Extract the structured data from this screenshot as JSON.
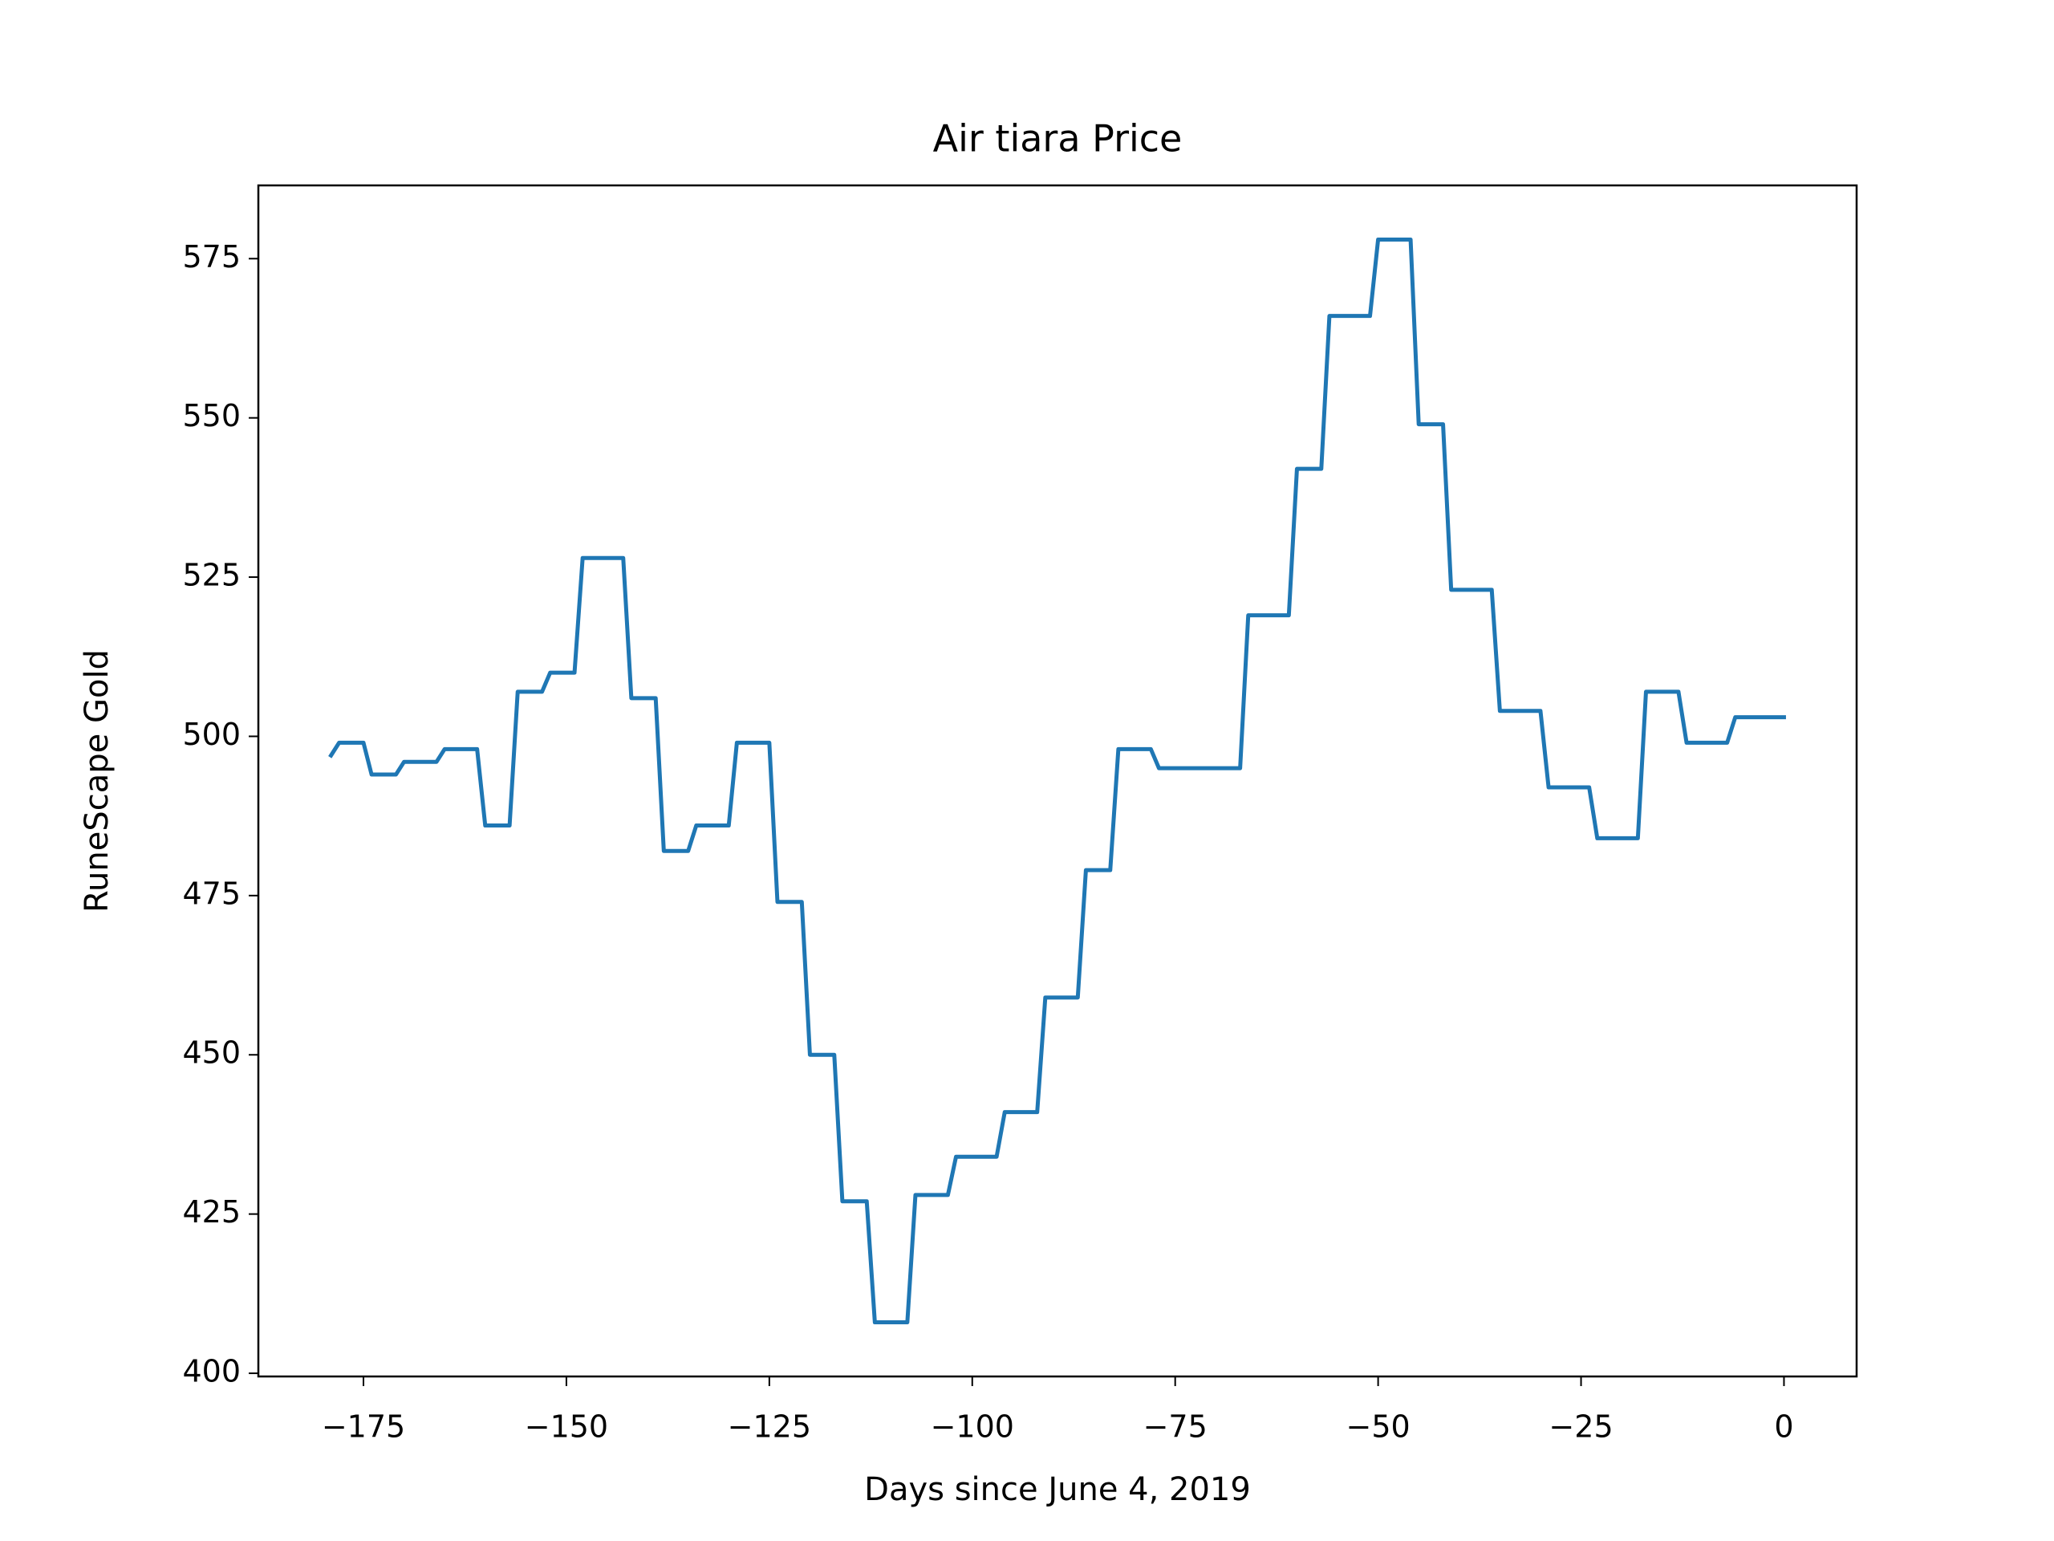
{
  "chart_data": {
    "type": "line",
    "title": "Air tiara Price",
    "xlabel": "Days since June 4, 2019",
    "ylabel": "RuneScape Gold",
    "color": "#1f77b4",
    "x": [
      -179,
      -178,
      -177,
      -176,
      -175,
      -174,
      -173,
      -172,
      -171,
      -170,
      -169,
      -168,
      -167,
      -166,
      -165,
      -164,
      -163,
      -162,
      -161,
      -160,
      -159,
      -158,
      -157,
      -156,
      -155,
      -154,
      -153,
      -152,
      -151,
      -150,
      -149,
      -148,
      -147,
      -146,
      -145,
      -144,
      -143,
      -142,
      -141,
      -140,
      -139,
      -138,
      -137,
      -136,
      -135,
      -134,
      -133,
      -132,
      -131,
      -130,
      -129,
      -128,
      -127,
      -126,
      -125,
      -124,
      -123,
      -122,
      -121,
      -120,
      -119,
      -118,
      -117,
      -116,
      -115,
      -114,
      -113,
      -112,
      -111,
      -110,
      -109,
      -108,
      -107,
      -106,
      -105,
      -104,
      -103,
      -102,
      -101,
      -100,
      -99,
      -98,
      -97,
      -96,
      -95,
      -94,
      -93,
      -92,
      -91,
      -90,
      -89,
      -88,
      -87,
      -86,
      -85,
      -84,
      -83,
      -82,
      -81,
      -80,
      -79,
      -78,
      -77,
      -76,
      -75,
      -74,
      -73,
      -72,
      -71,
      -70,
      -69,
      -68,
      -67,
      -66,
      -65,
      -64,
      -63,
      -62,
      -61,
      -60,
      -59,
      -58,
      -57,
      -56,
      -55,
      -54,
      -53,
      -52,
      -51,
      -50,
      -49,
      -48,
      -47,
      -46,
      -45,
      -44,
      -43,
      -42,
      -41,
      -40,
      -39,
      -38,
      -37,
      -36,
      -35,
      -34,
      -33,
      -32,
      -31,
      -30,
      -29,
      -28,
      -27,
      -26,
      -25,
      -24,
      -23,
      -22,
      -21,
      -20,
      -19,
      -18,
      -17,
      -16,
      -15,
      -14,
      -13,
      -12,
      -11,
      -10,
      -9,
      -8,
      -7,
      -6,
      -5,
      -4,
      -3,
      -2,
      -1,
      0
    ],
    "values": [
      497,
      499,
      499,
      499,
      499,
      494,
      494,
      494,
      494,
      496,
      496,
      496,
      496,
      496,
      498,
      498,
      498,
      498,
      498,
      486,
      486,
      486,
      486,
      507,
      507,
      507,
      507,
      510,
      510,
      510,
      510,
      528,
      528,
      528,
      528,
      528,
      528,
      506,
      506,
      506,
      506,
      482,
      482,
      482,
      482,
      486,
      486,
      486,
      486,
      486,
      499,
      499,
      499,
      499,
      499,
      474,
      474,
      474,
      474,
      450,
      450,
      450,
      450,
      427,
      427,
      427,
      427,
      408,
      408,
      408,
      408,
      408,
      428,
      428,
      428,
      428,
      428,
      434,
      434,
      434,
      434,
      434,
      434,
      441,
      441,
      441,
      441,
      441,
      459,
      459,
      459,
      459,
      459,
      479,
      479,
      479,
      479,
      498,
      498,
      498,
      498,
      498,
      495,
      495,
      495,
      495,
      495,
      495,
      495,
      495,
      495,
      495,
      495,
      519,
      519,
      519,
      519,
      519,
      519,
      542,
      542,
      542,
      542,
      566,
      566,
      566,
      566,
      566,
      566,
      578,
      578,
      578,
      578,
      578,
      549,
      549,
      549,
      549,
      523,
      523,
      523,
      523,
      523,
      523,
      504,
      504,
      504,
      504,
      504,
      504,
      492,
      492,
      492,
      492,
      492,
      492,
      484,
      484,
      484,
      484,
      484,
      484,
      507,
      507,
      507,
      507,
      507,
      499,
      499,
      499,
      499,
      499,
      499,
      503,
      503,
      503,
      503,
      503,
      503,
      503
    ],
    "xlim": [
      -187.95,
      8.95
    ],
    "xticks": [
      {
        "value": -175,
        "label": "−175"
      },
      {
        "value": -150,
        "label": "−150"
      },
      {
        "value": -125,
        "label": "−125"
      },
      {
        "value": -100,
        "label": "−100"
      },
      {
        "value": -75,
        "label": "−75"
      },
      {
        "value": -50,
        "label": "−50"
      },
      {
        "value": -25,
        "label": "−25"
      },
      0
    ],
    "ylim": [
      399.5,
      586.5
    ],
    "yticks": [
      400,
      425,
      450,
      475,
      500,
      525,
      550,
      575
    ]
  }
}
